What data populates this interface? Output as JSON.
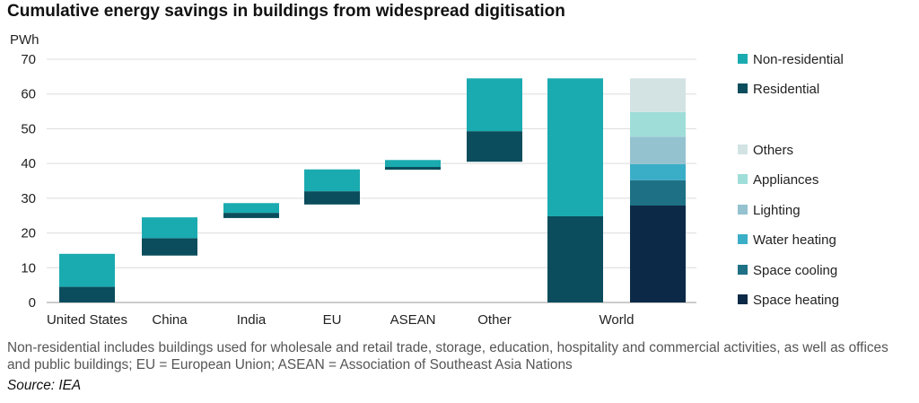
{
  "title": "Cumulative energy savings in buildings from widespread digitisation",
  "note": "Non-residential includes buildings used for wholesale and retail trade, storage, education, hospitality and commercial activities, as well as offices and public buildings; EU = European Union; ASEAN = Association of Southeast Asia Nations",
  "source": "Source: IEA",
  "colors": {
    "non_residential": "#1aabb0",
    "residential": "#0b4d5c",
    "others": "#d3e3e4",
    "appliances": "#9fded8",
    "lighting": "#94c2cf",
    "water_heating": "#3baec7",
    "space_cooling": "#1e7185",
    "space_heating": "#0c2a47"
  },
  "chart_data": {
    "type": "bar",
    "subtype": "stacked waterfall",
    "ylabel": "PWh",
    "ylim": [
      0,
      70
    ],
    "yticks": [
      0,
      10,
      20,
      30,
      40,
      50,
      60,
      70
    ],
    "grid": true,
    "legend_position": "right",
    "categories": [
      "United States",
      "China",
      "India",
      "EU",
      "ASEAN",
      "Other",
      "World"
    ],
    "waterfall": [
      {
        "category": "United States",
        "base": 0,
        "residential": 4.5,
        "non_residential": 9.5
      },
      {
        "category": "China",
        "base": 13.5,
        "residential": 5,
        "non_residential": 6
      },
      {
        "category": "India",
        "base": 24.3,
        "residential": 1.5,
        "non_residential": 2.8
      },
      {
        "category": "EU",
        "base": 28.2,
        "residential": 3.8,
        "non_residential": 6.3
      },
      {
        "category": "ASEAN",
        "base": 38.2,
        "residential": 0.8,
        "non_residential": 2
      },
      {
        "category": "Other",
        "base": 40.5,
        "residential": 8.8,
        "non_residential": 15.2
      }
    ],
    "world_by_sector": {
      "category": "World",
      "residential": 24.8,
      "non_residential": 39.7
    },
    "world_by_end_use": [
      {
        "name": "Space heating",
        "value": 27.9
      },
      {
        "name": "Space cooling",
        "value": 7.3
      },
      {
        "name": "Water heating",
        "value": 4.6
      },
      {
        "name": "Lighting",
        "value": 7.9
      },
      {
        "name": "Appliances",
        "value": 7.1
      },
      {
        "name": "Others",
        "value": 9.7
      }
    ],
    "legend_sector": [
      "Non-residential",
      "Residential"
    ],
    "legend_end_use": [
      "Others",
      "Appliances",
      "Lighting",
      "Water heating",
      "Space cooling",
      "Space heating"
    ]
  }
}
